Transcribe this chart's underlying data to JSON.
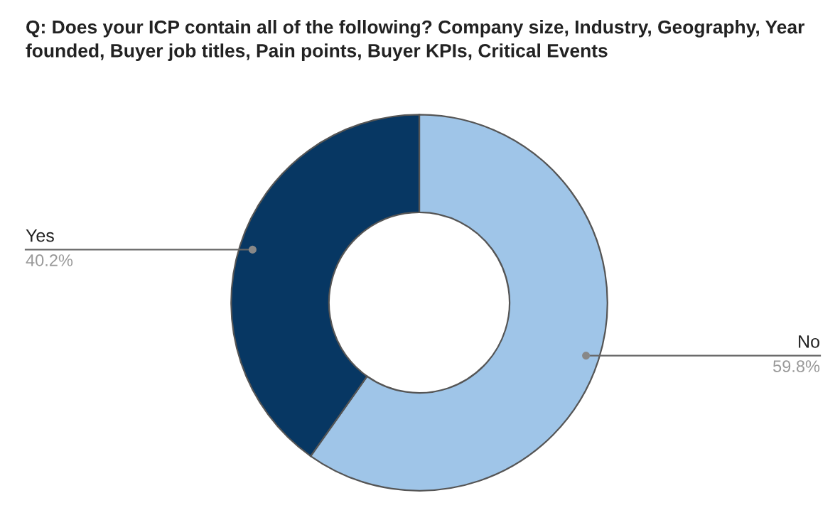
{
  "chart_data": {
    "type": "donut",
    "title": "Q: Does your ICP contain all of the following? Company size, Industry, Geography, Year founded, Buyer job titles, Pain points, Buyer KPIs, Critical Events",
    "categories": [
      "No",
      "Yes"
    ],
    "values": [
      59.8,
      40.2
    ],
    "colors": [
      "#9fc5e8",
      "#073763"
    ],
    "value_labels": [
      "59.8%",
      "40.2%"
    ],
    "legend": false
  }
}
